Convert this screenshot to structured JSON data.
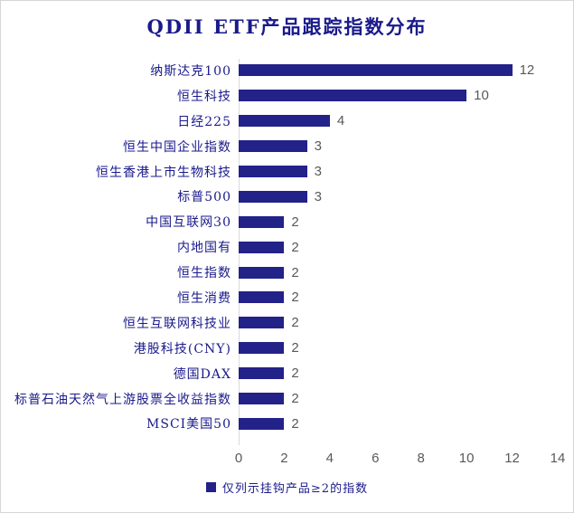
{
  "chart_data": {
    "type": "bar",
    "orientation": "horizontal",
    "title": "QDII ETF产品跟踪指数分布",
    "categories": [
      "纳斯达克100",
      "恒生科技",
      "日经225",
      "恒生中国企业指数",
      "恒生香港上市生物科技",
      "标普500",
      "中国互联网30",
      "内地国有",
      "恒生指数",
      "恒生消费",
      "恒生互联网科技业",
      "港股科技(CNY)",
      "德国DAX",
      "标普石油天然气上游股票全收益指数",
      "MSCI美国50"
    ],
    "values": [
      12,
      10,
      4,
      3,
      3,
      3,
      2,
      2,
      2,
      2,
      2,
      2,
      2,
      2,
      2
    ],
    "xlabel": "",
    "ylabel": "",
    "xlim": [
      0,
      14
    ],
    "x_ticks": [
      0,
      2,
      4,
      6,
      8,
      10,
      12,
      14
    ],
    "grid": false,
    "data_labels": true,
    "legend_position": "bottom",
    "colors": {
      "bar": "#232289",
      "category_text": "#1a1a8c",
      "title_text": "#1a1a8c",
      "value_text": "#595959",
      "axis_line": "#d9d9d9"
    }
  },
  "legend": {
    "label": "仅列示挂钩产品≥2的指数"
  }
}
